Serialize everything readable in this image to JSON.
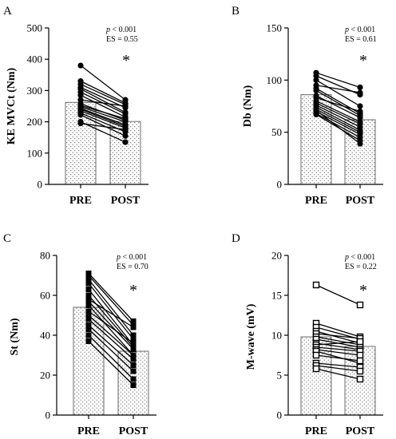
{
  "chart_data": [
    {
      "type": "bar",
      "panel": "A",
      "ylabel": "KE MVCt (Nm)",
      "categories": [
        "PRE",
        "POST"
      ],
      "ylim": [
        0,
        500
      ],
      "yticks": [
        "0",
        "100",
        "200",
        "300",
        "400",
        "500"
      ],
      "bar_means": [
        262,
        201
      ],
      "marker": "circle",
      "stats": {
        "p": "< 0.001",
        "es": "ES = 0.55"
      },
      "significance": "*",
      "subjects": [
        [
          380,
          270
        ],
        [
          330,
          260
        ],
        [
          320,
          255
        ],
        [
          310,
          245
        ],
        [
          305,
          230
        ],
        [
          295,
          225
        ],
        [
          285,
          215
        ],
        [
          270,
          250
        ],
        [
          258,
          205
        ],
        [
          252,
          210
        ],
        [
          248,
          200
        ],
        [
          243,
          190
        ],
        [
          240,
          185
        ],
        [
          235,
          180
        ],
        [
          228,
          168
        ],
        [
          222,
          155
        ],
        [
          200,
          135
        ],
        [
          195,
          175
        ]
      ]
    },
    {
      "type": "bar",
      "panel": "B",
      "ylabel": "Db (Nm)",
      "categories": [
        "PRE",
        "POST"
      ],
      "ylim": [
        0,
        150
      ],
      "yticks": [
        "0",
        "50",
        "100",
        "150"
      ],
      "bar_means": [
        86,
        62
      ],
      "marker": "circle",
      "stats": {
        "p": "< 0.001",
        "es": "ES = 0.61"
      },
      "significance": "*",
      "subjects": [
        [
          107,
          93
        ],
        [
          104,
          86
        ],
        [
          100,
          75
        ],
        [
          95,
          88
        ],
        [
          92,
          68
        ],
        [
          90,
          66
        ],
        [
          85,
          64
        ],
        [
          83,
          70
        ],
        [
          80,
          60
        ],
        [
          78,
          58
        ],
        [
          76,
          55
        ],
        [
          74,
          52
        ],
        [
          72,
          50
        ],
        [
          70,
          48
        ],
        [
          68,
          45
        ],
        [
          67,
          42
        ],
        [
          71,
          39
        ]
      ]
    },
    {
      "type": "bar",
      "panel": "C",
      "ylabel": "St (Nm)",
      "categories": [
        "PRE",
        "POST"
      ],
      "ylim": [
        0,
        80
      ],
      "yticks": [
        "0",
        "20",
        "40",
        "60",
        "80"
      ],
      "bar_means": [
        54,
        32
      ],
      "marker": "square",
      "stats": {
        "p": "< 0.001",
        "es": "ES = 0.70"
      },
      "significance": "*",
      "subjects": [
        [
          71,
          47
        ],
        [
          70,
          45
        ],
        [
          68,
          40
        ],
        [
          66,
          38
        ],
        [
          63,
          35
        ],
        [
          60,
          34
        ],
        [
          57,
          33
        ],
        [
          55,
          30
        ],
        [
          52,
          36
        ],
        [
          50,
          30
        ],
        [
          48,
          28
        ],
        [
          45,
          25
        ],
        [
          43,
          22
        ],
        [
          40,
          18
        ],
        [
          37,
          15
        ],
        [
          58,
          44
        ]
      ]
    },
    {
      "type": "bar",
      "panel": "D",
      "ylabel": "M-wave (mV)",
      "categories": [
        "PRE",
        "POST"
      ],
      "ylim": [
        0,
        20
      ],
      "yticks": [
        "0",
        "5",
        "10",
        "15",
        "20"
      ],
      "bar_means": [
        9.8,
        8.6
      ],
      "marker": "open-square",
      "stats": {
        "p": "< 0.001",
        "es": "ES = 0.22"
      },
      "significance": "*",
      "subjects": [
        [
          16.3,
          13.8
        ],
        [
          11.5,
          9.8
        ],
        [
          11.0,
          9.5
        ],
        [
          10.5,
          9.0
        ],
        [
          10.2,
          9.6
        ],
        [
          9.8,
          8.8
        ],
        [
          9.5,
          8.5
        ],
        [
          9.0,
          8.2
        ],
        [
          8.8,
          9.2
        ],
        [
          8.5,
          8.0
        ],
        [
          8.2,
          7.5
        ],
        [
          8.0,
          6.5
        ],
        [
          7.5,
          6.8
        ],
        [
          6.5,
          6.0
        ],
        [
          6.2,
          5.5
        ],
        [
          5.8,
          4.5
        ]
      ]
    }
  ]
}
